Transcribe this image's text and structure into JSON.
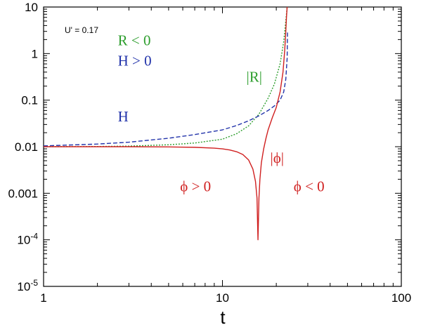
{
  "chart_data": {
    "type": "line",
    "xlabel": "t",
    "ylabel": "",
    "x_scale": "log",
    "y_scale": "log",
    "xlim": [
      1,
      100
    ],
    "ylim": [
      1e-05,
      10
    ],
    "grid": false,
    "x_ticks": [
      {
        "value": 1,
        "label": "1"
      },
      {
        "value": 10,
        "label": "10"
      },
      {
        "value": 100,
        "label": "100"
      }
    ],
    "y_ticks": [
      {
        "value": 1e-05,
        "base": "10",
        "exp": "-5"
      },
      {
        "value": 0.0001,
        "base": "10",
        "exp": "-4"
      },
      {
        "value": 0.001,
        "label": "0.001"
      },
      {
        "value": 0.01,
        "label": "0.01"
      },
      {
        "value": 0.1,
        "label": "0.1"
      },
      {
        "value": 1,
        "label": "1"
      },
      {
        "value": 10,
        "label": "10"
      }
    ],
    "parameter_label": "U' = 0.17",
    "annotations": [
      {
        "text": "R < 0",
        "color": "#2e9e2e",
        "at": [
          2.6,
          1.5
        ]
      },
      {
        "text": "H > 0",
        "color": "#2233aa",
        "at": [
          2.6,
          0.55
        ]
      },
      {
        "text": "|R|",
        "color": "#2e9e2e",
        "at": [
          13.6,
          0.25
        ]
      },
      {
        "text": "H",
        "color": "#2233aa",
        "at": [
          2.6,
          0.035
        ]
      },
      {
        "text": "|ϕ|",
        "color": "#d02020",
        "at": [
          18.5,
          0.0045
        ]
      },
      {
        "text": "ϕ > 0",
        "color": "#d02020",
        "at": [
          5.8,
          0.0011
        ]
      },
      {
        "text": "ϕ < 0",
        "color": "#d02020",
        "at": [
          25.0,
          0.0011
        ]
      }
    ],
    "series": [
      {
        "color": "#2e9e2e",
        "style": "dotted",
        "x": [
          1,
          2,
          3,
          5,
          7,
          10,
          12,
          14,
          16,
          18,
          19.5,
          21,
          22,
          22.6,
          23.0
        ],
        "y": [
          0.01,
          0.0101,
          0.0103,
          0.011,
          0.012,
          0.0145,
          0.019,
          0.028,
          0.05,
          0.11,
          0.22,
          0.6,
          1.8,
          5.0,
          10
        ]
      },
      {
        "color": "#2233aa",
        "style": "dashed",
        "x": [
          1,
          2,
          3,
          5,
          7,
          10,
          12,
          14,
          16,
          18,
          19.5,
          21,
          22,
          22.6,
          23.0,
          23.1
        ],
        "y": [
          0.0104,
          0.0114,
          0.0125,
          0.0152,
          0.0182,
          0.023,
          0.0285,
          0.036,
          0.046,
          0.06,
          0.075,
          0.1,
          0.15,
          0.28,
          0.8,
          3.0
        ]
      },
      {
        "color": "#d02020",
        "style": "solid",
        "x": [
          1,
          3,
          5,
          7,
          9,
          10,
          11,
          12,
          13,
          14,
          14.8,
          15.3,
          15.6,
          15.8,
          16.0,
          16.2,
          16.5,
          17.0,
          17.5,
          18,
          19,
          20,
          21,
          21.8,
          22.3,
          22.6,
          22.8,
          23.0
        ],
        "y": [
          0.01,
          0.01,
          0.0099,
          0.0097,
          0.0093,
          0.009,
          0.0085,
          0.0078,
          0.0068,
          0.0052,
          0.0033,
          0.0018,
          0.0008,
          0.0001,
          0.0008,
          0.002,
          0.0045,
          0.009,
          0.015,
          0.023,
          0.042,
          0.07,
          0.15,
          0.4,
          1.2,
          3.0,
          6.0,
          10
        ]
      }
    ]
  }
}
